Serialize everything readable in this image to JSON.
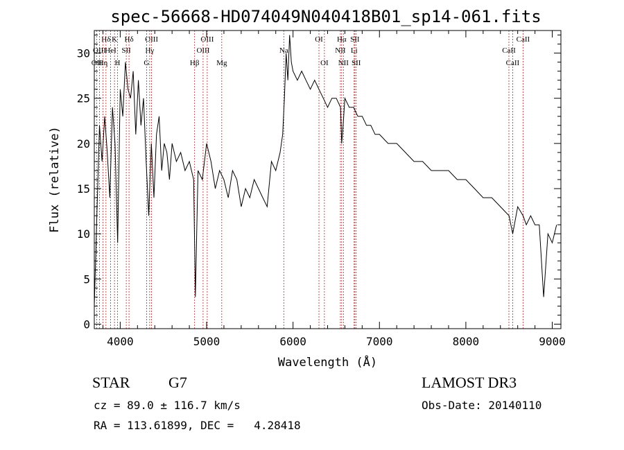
{
  "header": {
    "title": "spec-56668-HD074049N040418B01_sp14-061.fits"
  },
  "info": {
    "class": "STAR",
    "subclass": "G7",
    "survey": "LAMOST DR3",
    "cz": "cz = 89.0 ± 116.7 km/s",
    "obs_date": "Obs-Date: 20140110",
    "radec": "RA = 113.61899, DEC =   4.28418"
  },
  "chart_data": {
    "type": "line",
    "title": "spec-56668-HD074049N040418B01_sp14-061.fits",
    "xlabel": "Wavelength (Å)",
    "ylabel": "Flux (relative)",
    "xlim": [
      3700,
      9100
    ],
    "ylim": [
      -0.5,
      32.5
    ],
    "xticks": [
      4000,
      5000,
      6000,
      7000,
      8000,
      9000
    ],
    "yticks": [
      0,
      5,
      10,
      15,
      20,
      25,
      30
    ],
    "x_minor_step": 200,
    "y_minor_step": 1,
    "grid": false,
    "line_color": "#000000",
    "marker_color": "#b22222",
    "spectrum": {
      "x": [
        3700,
        3730,
        3760,
        3790,
        3820,
        3850,
        3880,
        3910,
        3940,
        3970,
        4000,
        4030,
        4060,
        4090,
        4120,
        4150,
        4180,
        4210,
        4240,
        4270,
        4300,
        4330,
        4360,
        4390,
        4420,
        4450,
        4480,
        4510,
        4540,
        4570,
        4600,
        4650,
        4700,
        4750,
        4800,
        4850,
        4870,
        4900,
        4950,
        5000,
        5050,
        5100,
        5150,
        5200,
        5250,
        5300,
        5350,
        5400,
        5450,
        5500,
        5550,
        5600,
        5650,
        5700,
        5750,
        5800,
        5850,
        5880,
        5900,
        5920,
        5940,
        5960,
        5980,
        6000,
        6050,
        6100,
        6150,
        6200,
        6250,
        6300,
        6350,
        6400,
        6450,
        6500,
        6550,
        6563,
        6580,
        6600,
        6650,
        6700,
        6750,
        6800,
        6850,
        6900,
        6950,
        7000,
        7100,
        7200,
        7300,
        7400,
        7500,
        7600,
        7700,
        7800,
        7900,
        8000,
        8100,
        8200,
        8300,
        8400,
        8500,
        8542,
        8600,
        8662,
        8700,
        8750,
        8800,
        8850,
        8900,
        8950,
        9000,
        9050
      ],
      "y": [
        2,
        12,
        22,
        18,
        23,
        19,
        14,
        24,
        20,
        9,
        26,
        23,
        29,
        26,
        25,
        28,
        21,
        27,
        22,
        25,
        18,
        12,
        20,
        14,
        21,
        23,
        17,
        20,
        19,
        16,
        20,
        18,
        19,
        17,
        18,
        16,
        3,
        17,
        16,
        20,
        18,
        15,
        17,
        16,
        14,
        17,
        16,
        13,
        15,
        14,
        16,
        15,
        14,
        13,
        18,
        17,
        19,
        21,
        25,
        30,
        27,
        32,
        29,
        28,
        27,
        28,
        27,
        26,
        27,
        26,
        25,
        24,
        25,
        25,
        24,
        20,
        22,
        25,
        24,
        24,
        23,
        23,
        22,
        22,
        21,
        21,
        20,
        20,
        19,
        18,
        18,
        17,
        17,
        17,
        16,
        16,
        15,
        14,
        14,
        13,
        12,
        10,
        13,
        12,
        11,
        12,
        11,
        11,
        3,
        10,
        9,
        11
      ]
    },
    "lines": [
      {
        "label": "Hδ",
        "x": 3835,
        "row": 0
      },
      {
        "label": "OII",
        "x": 3727,
        "row": 2
      },
      {
        "label": "OIII",
        "x": 3760,
        "row": 1
      },
      {
        "label": "Hη",
        "x": 3800,
        "row": 2
      },
      {
        "label": "HeI",
        "x": 3889,
        "row": 1
      },
      {
        "label": "K",
        "x": 3934,
        "row": 0
      },
      {
        "label": "H",
        "x": 3969,
        "row": 2
      },
      {
        "label": "SII",
        "x": 4070,
        "row": 1
      },
      {
        "label": "Hδ",
        "x": 4102,
        "row": 0
      },
      {
        "label": "OIII",
        "x": 4363,
        "row": 0
      },
      {
        "label": "Hγ",
        "x": 4341,
        "row": 1
      },
      {
        "label": "G",
        "x": 4305,
        "row": 2
      },
      {
        "label": "Hβ",
        "x": 4861,
        "row": 2
      },
      {
        "label": "OIII",
        "x": 5007,
        "row": 0
      },
      {
        "label": "OIII",
        "x": 4959,
        "row": 1
      },
      {
        "label": "Mg",
        "x": 5175,
        "row": 2
      },
      {
        "label": "Na",
        "x": 5893,
        "row": 1
      },
      {
        "label": "OI",
        "x": 6300,
        "row": 0
      },
      {
        "label": "OI",
        "x": 6363,
        "row": 2
      },
      {
        "label": "Hα",
        "x": 6563,
        "row": 0
      },
      {
        "label": "NII",
        "x": 6548,
        "row": 1
      },
      {
        "label": "NII",
        "x": 6583,
        "row": 2
      },
      {
        "label": "SII",
        "x": 6716,
        "row": 0
      },
      {
        "label": "Li",
        "x": 6707,
        "row": 1
      },
      {
        "label": "SII",
        "x": 6731,
        "row": 2
      },
      {
        "label": "CaII",
        "x": 8662,
        "row": 0
      },
      {
        "label": "CaII",
        "x": 8498,
        "row": 1
      },
      {
        "label": "CaII",
        "x": 8542,
        "row": 2
      }
    ]
  }
}
